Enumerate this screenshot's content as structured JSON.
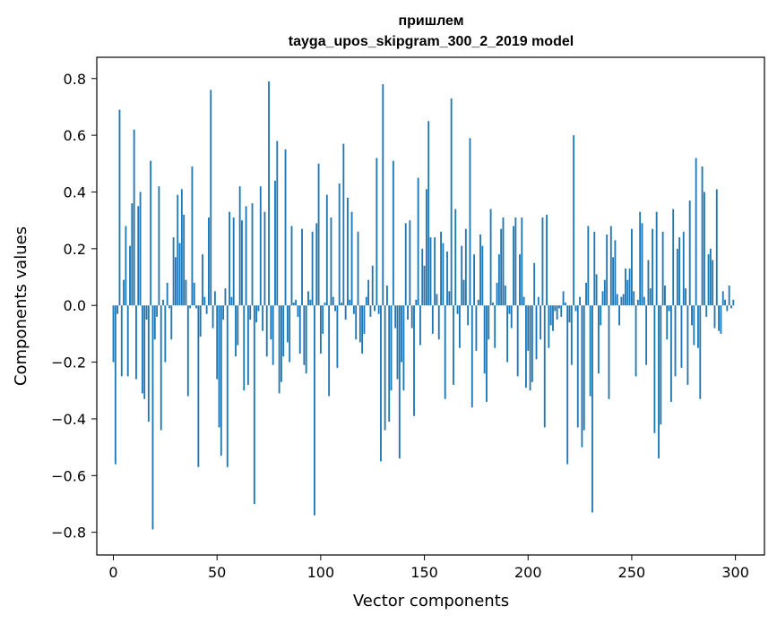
{
  "chart_data": {
    "type": "bar",
    "title_line1": "пришлем",
    "title_line2": "tayga_upos_skipgram_300_2_2019 model",
    "xlabel": "Vector components",
    "ylabel": "Components values",
    "xlim": [
      -8,
      314
    ],
    "ylim": [
      -0.88,
      0.875
    ],
    "xticks": [
      0,
      50,
      100,
      150,
      200,
      250,
      300
    ],
    "yticks": [
      -0.8,
      -0.6,
      -0.4,
      -0.2,
      0.0,
      0.2,
      0.4,
      0.6,
      0.8
    ],
    "ytick_labels": [
      "−0.8",
      "−0.6",
      "−0.4",
      "−0.2",
      "0.0",
      "0.2",
      "0.4",
      "0.6",
      "0.8"
    ],
    "bar_color": "#1f77b4",
    "values": [
      -0.2,
      -0.56,
      -0.03,
      0.69,
      -0.25,
      0.09,
      0.28,
      -0.25,
      0.21,
      0.36,
      0.62,
      -0.26,
      0.35,
      0.4,
      -0.31,
      -0.33,
      -0.05,
      -0.41,
      0.51,
      -0.79,
      -0.12,
      -0.04,
      0.42,
      -0.44,
      0.02,
      -0.2,
      0.08,
      -0.01,
      -0.12,
      0.24,
      0.17,
      0.39,
      0.22,
      0.41,
      0.32,
      0.09,
      -0.32,
      -0.01,
      0.49,
      0.08,
      -0.01,
      -0.57,
      -0.11,
      0.18,
      0.03,
      -0.03,
      0.31,
      0.76,
      -0.08,
      0.05,
      -0.26,
      -0.43,
      -0.53,
      -0.05,
      0.06,
      -0.57,
      0.33,
      0.03,
      0.31,
      -0.18,
      -0.14,
      0.42,
      0.3,
      -0.3,
      0.35,
      -0.28,
      -0.05,
      0.36,
      -0.7,
      -0.06,
      -0.02,
      0.42,
      -0.09,
      0.33,
      -0.18,
      0.79,
      -0.12,
      -0.21,
      0.44,
      0.58,
      -0.31,
      -0.27,
      -0.18,
      0.55,
      -0.13,
      -0.2,
      0.28,
      0.01,
      0.02,
      -0.04,
      -0.17,
      0.27,
      -0.21,
      -0.24,
      0.05,
      0.02,
      0.26,
      -0.74,
      0.29,
      0.5,
      -0.17,
      -0.1,
      0.01,
      0.39,
      -0.32,
      0.31,
      0.03,
      -0.02,
      -0.22,
      0.43,
      0.01,
      0.57,
      -0.05,
      0.38,
      0.02,
      0.33,
      -0.03,
      -0.12,
      0.26,
      -0.13,
      -0.17,
      -0.1,
      0.03,
      0.09,
      -0.04,
      0.14,
      -0.02,
      0.52,
      -0.03,
      -0.55,
      0.78,
      -0.44,
      0.07,
      -0.41,
      -0.3,
      0.51,
      -0.08,
      -0.26,
      -0.54,
      -0.2,
      -0.3,
      0.29,
      -0.05,
      0.3,
      -0.08,
      -0.39,
      0.02,
      0.45,
      -0.14,
      0.2,
      0.14,
      0.41,
      0.65,
      0.24,
      -0.1,
      0.24,
      0.04,
      -0.12,
      0.26,
      0.22,
      -0.33,
      0.19,
      0.05,
      0.73,
      -0.28,
      0.34,
      -0.03,
      -0.15,
      0.21,
      0.09,
      0.27,
      -0.07,
      0.59,
      -0.36,
      0.18,
      -0.16,
      0.02,
      0.25,
      0.21,
      -0.24,
      -0.34,
      -0.12,
      0.34,
      0.01,
      -0.15,
      0.08,
      0.18,
      0.27,
      0.31,
      0.07,
      -0.2,
      -0.03,
      -0.08,
      0.28,
      0.31,
      -0.25,
      0.18,
      0.31,
      0.03,
      -0.29,
      -0.16,
      -0.3,
      -0.27,
      0.15,
      -0.19,
      0.03,
      -0.12,
      0.31,
      -0.43,
      0.32,
      -0.15,
      -0.07,
      -0.09,
      -0.02,
      -0.05,
      -0.01,
      -0.04,
      0.05,
      0.01,
      -0.56,
      -0.06,
      -0.21,
      0.6,
      -0.02,
      -0.43,
      0.03,
      -0.5,
      -0.44,
      0.08,
      0.28,
      -0.32,
      -0.73,
      0.26,
      0.11,
      -0.24,
      -0.07,
      0.05,
      0.09,
      0.25,
      -0.33,
      0.28,
      0.17,
      0.23,
      0.04,
      -0.07,
      0.03,
      0.04,
      0.13,
      0.09,
      0.13,
      0.27,
      0.05,
      -0.25,
      0.02,
      0.33,
      0.29,
      0.03,
      -0.21,
      0.16,
      0.06,
      0.27,
      -0.45,
      0.33,
      -0.54,
      -0.42,
      0.26,
      0.07,
      -0.12,
      -0.02,
      -0.34,
      0.34,
      -0.25,
      0.2,
      0.24,
      -0.22,
      0.26,
      0.06,
      -0.28,
      0.37,
      -0.07,
      -0.14,
      0.52,
      -0.15,
      -0.33,
      0.49,
      0.4,
      -0.04,
      0.18,
      0.2,
      0.16,
      -0.08,
      0.41,
      -0.09,
      -0.1,
      0.05,
      0.02,
      -0.02,
      0.07,
      -0.01,
      0.02
    ]
  }
}
